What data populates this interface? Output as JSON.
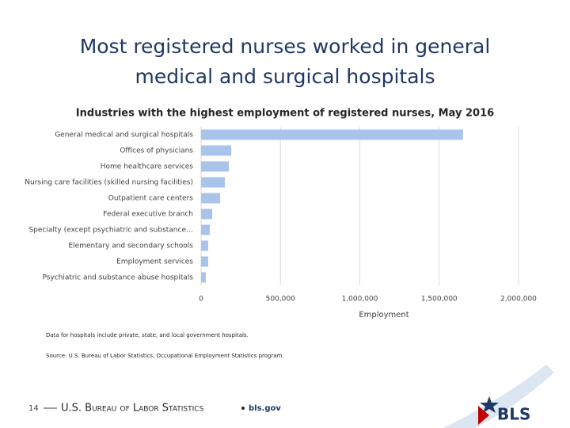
{
  "chart_data": {
    "type": "bar",
    "orientation": "horizontal",
    "title": [
      "Most registered nurses worked in general",
      "medical and surgical hospitals"
    ],
    "subtitle": "Industries with the highest employment of registered nurses, May 2016",
    "categories": [
      "General medical and surgical hospitals",
      "Offices of physicians",
      "Home healthcare services",
      "Nursing care facilities (skilled nursing facilities)",
      "Outpatient care centers",
      "Federal executive branch",
      "Specialty (except psychiatric and substance…",
      "Elementary and secondary schools",
      "Employment services",
      "Psychiatric and substance abuse hospitals"
    ],
    "values": [
      1650000,
      190000,
      175000,
      150000,
      120000,
      70000,
      55000,
      45000,
      45000,
      30000
    ],
    "color": "#a9c4eb",
    "xlim": [
      0,
      2000000
    ],
    "xticks": [
      0,
      {
        "value": 500000,
        "label": "500,000"
      },
      {
        "value": 1000000,
        "label": "1,000,000"
      },
      {
        "value": 1500000,
        "label": "1,500,000"
      },
      {
        "value": 2000000,
        "label": "2,000,000"
      }
    ],
    "xlabel": "Employment",
    "grid": true,
    "notes": [
      "Data for hospitals include private, state, and local government hospitals.",
      "Source: U.S. Bureau of Labor Statistics, Occupational Employment Statistics program."
    ]
  },
  "footer": {
    "page": "14",
    "org": "U.S. Bureau of Labor Statistics",
    "site": "bls.gov",
    "logo": "BLS"
  }
}
